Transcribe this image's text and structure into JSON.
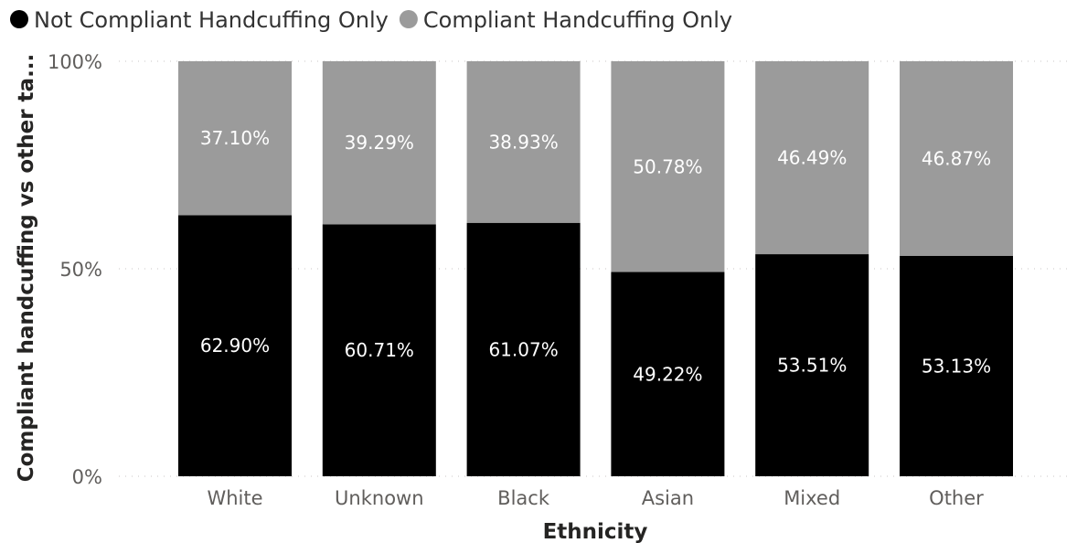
{
  "chart_data": {
    "type": "bar",
    "stacked": true,
    "normalized_percent": true,
    "xlabel": "Ethnicity",
    "ylabel": "Compliant handcuffing vs other ta...",
    "ylim": [
      0,
      100
    ],
    "yticks": [
      "0%",
      "50%",
      "100%"
    ],
    "ytick_values": [
      0,
      50,
      100
    ],
    "grid": true,
    "legend_position": "top-left",
    "categories": [
      "White",
      "Unknown",
      "Black",
      "Asian",
      "Mixed",
      "Other"
    ],
    "series": [
      {
        "name": "Not Compliant Handcuffing Only",
        "color": "#000000",
        "label_color": "#FFFFFF",
        "values": [
          62.9,
          60.71,
          61.07,
          49.22,
          53.51,
          53.13
        ],
        "labels": [
          "62.90%",
          "60.71%",
          "61.07%",
          "49.22%",
          "53.51%",
          "53.13%"
        ]
      },
      {
        "name": "Compliant Handcuffing Only",
        "color": "#9B9B9B",
        "label_color": "#FFFFFF",
        "values": [
          37.1,
          39.29,
          38.93,
          50.78,
          46.49,
          46.87
        ],
        "labels": [
          "37.10%",
          "39.29%",
          "38.93%",
          "50.78%",
          "46.49%",
          "46.87%"
        ]
      }
    ]
  }
}
